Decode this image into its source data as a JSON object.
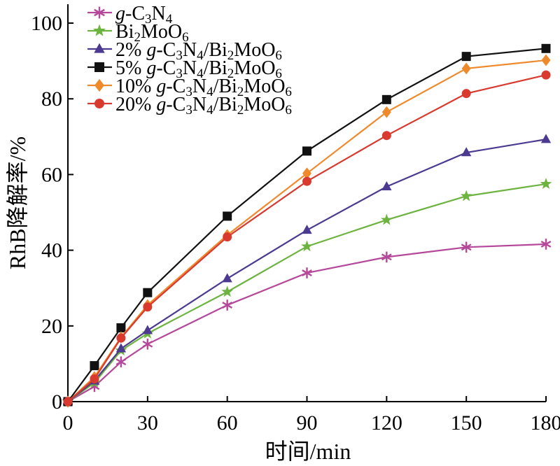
{
  "chart_data": {
    "type": "line",
    "xlabel": "时间/min",
    "ylabel": "RhB降解率/%",
    "xlim": [
      0,
      180
    ],
    "ylim": [
      0,
      105
    ],
    "xticks": [
      0,
      30,
      60,
      90,
      120,
      150,
      180
    ],
    "yticks": [
      0,
      20,
      40,
      60,
      80,
      100
    ],
    "grid": false,
    "legend_position": "top-left",
    "x": [
      0,
      10,
      20,
      30,
      60,
      90,
      120,
      150,
      180
    ],
    "series": [
      {
        "name": "g-C3N4",
        "legend_parts": [
          [
            "g",
            "i"
          ],
          [
            "-C",
            ""
          ],
          [
            "3",
            "sub"
          ],
          [
            "N",
            ""
          ],
          [
            "4",
            "sub"
          ]
        ],
        "color": "#b5489a",
        "marker": "asterisk",
        "values": [
          0,
          4,
          10.5,
          15.2,
          25.5,
          34,
          38.2,
          40.8,
          41.6
        ]
      },
      {
        "name": "Bi2MoO6",
        "legend_parts": [
          [
            "Bi",
            ""
          ],
          [
            "2",
            "sub"
          ],
          [
            "MoO",
            ""
          ],
          [
            "6",
            "sub"
          ]
        ],
        "color": "#6db33f",
        "marker": "star",
        "values": [
          0,
          5,
          13.5,
          18,
          29,
          41,
          48,
          54.3,
          57.5
        ]
      },
      {
        "name": "2% g-C3N4/Bi2MoO6",
        "legend_parts": [
          [
            "2% ",
            ""
          ],
          [
            "g",
            "i"
          ],
          [
            "-C",
            ""
          ],
          [
            "3",
            "sub"
          ],
          [
            "N",
            ""
          ],
          [
            "4",
            "sub"
          ],
          [
            "/Bi",
            ""
          ],
          [
            "2",
            "sub"
          ],
          [
            "MoO",
            ""
          ],
          [
            "6",
            "sub"
          ]
        ],
        "color": "#4b3a8f",
        "marker": "triangle",
        "values": [
          0,
          5.5,
          14,
          18.8,
          32.5,
          45.3,
          56.8,
          65.8,
          69.3
        ]
      },
      {
        "name": "5% g-C3N4/Bi2MoO6",
        "legend_parts": [
          [
            "5% ",
            ""
          ],
          [
            "g",
            "i"
          ],
          [
            "-C",
            ""
          ],
          [
            "3",
            "sub"
          ],
          [
            "N",
            ""
          ],
          [
            "4",
            "sub"
          ],
          [
            "/Bi",
            ""
          ],
          [
            "2",
            "sub"
          ],
          [
            "MoO",
            ""
          ],
          [
            "6",
            "sub"
          ]
        ],
        "color": "#111111",
        "marker": "square",
        "values": [
          0,
          9.5,
          19.5,
          28.8,
          49,
          66.2,
          79.8,
          91.2,
          93.3
        ]
      },
      {
        "name": "10% g-C3N4/Bi2MoO6",
        "legend_parts": [
          [
            "10% ",
            ""
          ],
          [
            "g",
            "i"
          ],
          [
            "-C",
            ""
          ],
          [
            "3",
            "sub"
          ],
          [
            "N",
            ""
          ],
          [
            "4",
            "sub"
          ],
          [
            "/Bi",
            ""
          ],
          [
            "2",
            "sub"
          ],
          [
            "MoO",
            ""
          ],
          [
            "6",
            "sub"
          ]
        ],
        "color": "#ef8a2c",
        "marker": "diamond",
        "values": [
          0,
          6.5,
          17,
          25.5,
          44,
          60.3,
          76.5,
          88,
          90.2
        ]
      },
      {
        "name": "20% g-C3N4/Bi2MoO6",
        "legend_parts": [
          [
            "20% ",
            ""
          ],
          [
            "g",
            "i"
          ],
          [
            "-C",
            ""
          ],
          [
            "3",
            "sub"
          ],
          [
            "N",
            ""
          ],
          [
            "4",
            "sub"
          ],
          [
            "/Bi",
            ""
          ],
          [
            "2",
            "sub"
          ],
          [
            "MoO",
            ""
          ],
          [
            "6",
            "sub"
          ]
        ],
        "color": "#d83a2f",
        "marker": "circle",
        "values": [
          0,
          6,
          16.8,
          25,
          43.5,
          58.2,
          70.3,
          81.4,
          86.3
        ]
      }
    ]
  }
}
